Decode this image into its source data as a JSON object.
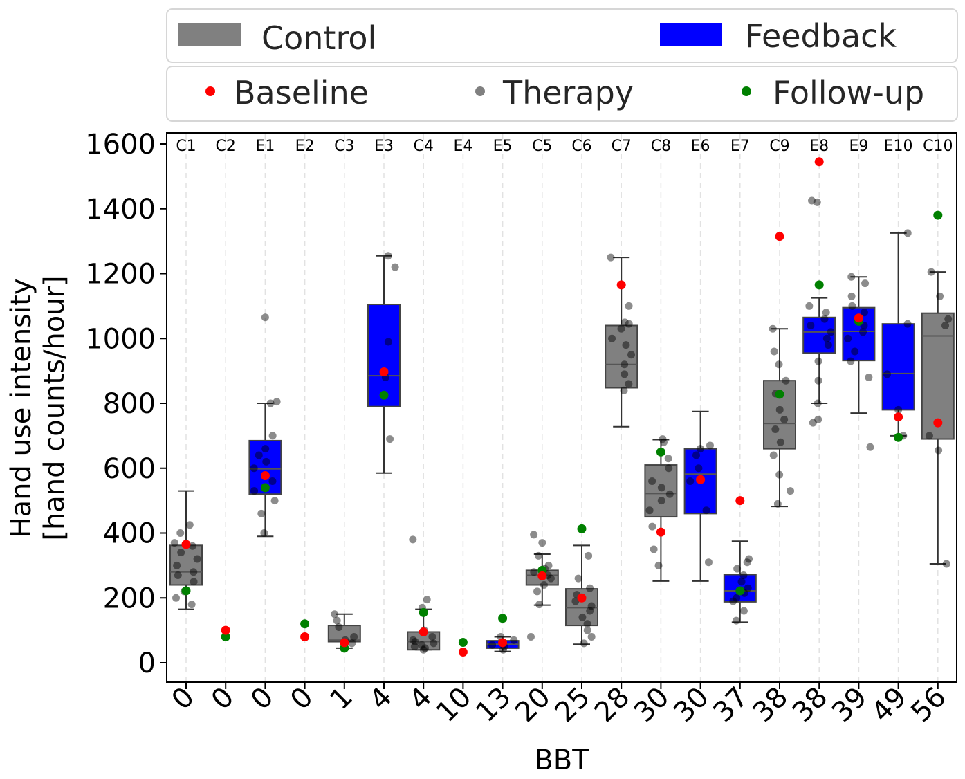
{
  "chart_data": {
    "type": "box",
    "ylabel_line1": "Hand use intensity",
    "ylabel_line2": "[hand counts/hour]",
    "xlabel": "BBT",
    "ylim": [
      -60,
      1640
    ],
    "yticks": [
      0,
      200,
      400,
      600,
      800,
      1000,
      1200,
      1400,
      1600
    ],
    "legend_groups": [
      {
        "label": "Control",
        "color": "#808080"
      },
      {
        "label": "Feedback",
        "color": "#0000ff"
      }
    ],
    "legend_markers": [
      {
        "label": "Baseline",
        "color": "#ff0000"
      },
      {
        "label": "Therapy",
        "color": "#808080"
      },
      {
        "label": "Follow-up",
        "color": "#008000"
      }
    ],
    "categories": [
      {
        "id": "C1",
        "bbt": "0",
        "group": "Control",
        "box": {
          "q1": 240,
          "median": 280,
          "q3": 362,
          "low": 165,
          "high": 530
        },
        "therapy": [
          180,
          200,
          220,
          250,
          270,
          280,
          300,
          320,
          340,
          360,
          370,
          400,
          425
        ],
        "baseline": 365,
        "followup": 222
      },
      {
        "id": "C2",
        "bbt": "0",
        "group": "Control",
        "box": null,
        "therapy": [],
        "baseline": 100,
        "followup": 80
      },
      {
        "id": "E1",
        "bbt": "0",
        "group": "Feedback",
        "box": {
          "q1": 520,
          "median": 598,
          "q3": 685,
          "low": 390,
          "high": 800
        },
        "therapy": [
          400,
          460,
          500,
          530,
          560,
          600,
          620,
          640,
          660,
          700,
          800,
          805,
          1065
        ],
        "baseline": 577,
        "followup": 540
      },
      {
        "id": "E2",
        "bbt": "0",
        "group": "Feedback",
        "box": null,
        "therapy": [],
        "baseline": 80,
        "followup": 120
      },
      {
        "id": "C3",
        "bbt": "1",
        "group": "Control",
        "box": {
          "q1": 65,
          "median": 70,
          "q3": 115,
          "low": 45,
          "high": 150
        },
        "therapy": [
          60,
          70,
          80,
          110,
          130,
          150
        ],
        "baseline": 62,
        "followup": 45
      },
      {
        "id": "E3",
        "bbt": "4",
        "group": "Feedback",
        "box": {
          "q1": 790,
          "median": 885,
          "q3": 1105,
          "low": 585,
          "high": 1255
        },
        "therapy": [
          690,
          880,
          990,
          1220,
          1255
        ],
        "baseline": 897,
        "followup": 825
      },
      {
        "id": "C4",
        "bbt": "4",
        "group": "Control",
        "box": {
          "q1": 40,
          "median": 65,
          "q3": 95,
          "low": 40,
          "high": 165
        },
        "therapy": [
          40,
          45,
          50,
          55,
          60,
          65,
          70,
          80,
          100,
          170,
          195,
          380
        ],
        "baseline": 95,
        "followup": 155
      },
      {
        "id": "E4",
        "bbt": "10",
        "group": "Feedback",
        "box": null,
        "therapy": [],
        "baseline": 33,
        "followup": 63
      },
      {
        "id": "E5",
        "bbt": "13",
        "group": "Feedback",
        "box": {
          "q1": 45,
          "median": 57,
          "q3": 68,
          "low": 35,
          "high": 80
        },
        "therapy": [
          40,
          50,
          55,
          60,
          70,
          80
        ],
        "baseline": 62,
        "followup": 137
      },
      {
        "id": "C5",
        "bbt": "20",
        "group": "Control",
        "box": {
          "q1": 240,
          "median": 270,
          "q3": 285,
          "low": 178,
          "high": 335
        },
        "therapy": [
          80,
          180,
          220,
          240,
          260,
          270,
          280,
          290,
          300,
          330,
          370,
          395
        ],
        "baseline": 268,
        "followup": 285
      },
      {
        "id": "C6",
        "bbt": "25",
        "group": "Control",
        "box": {
          "q1": 115,
          "median": 170,
          "q3": 228,
          "low": 57,
          "high": 362
        },
        "therapy": [
          60,
          80,
          100,
          120,
          140,
          160,
          175,
          190,
          210,
          230,
          260,
          330
        ],
        "baseline": 200,
        "followup": 413
      },
      {
        "id": "C7",
        "bbt": "28",
        "group": "Control",
        "box": {
          "q1": 848,
          "median": 920,
          "q3": 1040,
          "low": 728,
          "high": 1250
        },
        "therapy": [
          840,
          860,
          890,
          920,
          950,
          980,
          1000,
          1030,
          1045,
          1050,
          1100,
          1250
        ],
        "baseline": 1165,
        "followup": null
      },
      {
        "id": "C8",
        "bbt": "30",
        "group": "Control",
        "box": {
          "q1": 450,
          "median": 522,
          "q3": 610,
          "low": 252,
          "high": 688
        },
        "therapy": [
          300,
          350,
          420,
          470,
          500,
          520,
          540,
          560,
          600,
          630,
          680,
          690
        ],
        "baseline": 403,
        "followup": 650
      },
      {
        "id": "E6",
        "bbt": "30",
        "group": "Feedback",
        "box": {
          "q1": 460,
          "median": 582,
          "q3": 660,
          "low": 252,
          "high": 775
        },
        "therapy": [
          310,
          470,
          560,
          600,
          640,
          660,
          670
        ],
        "baseline": 565,
        "followup": null
      },
      {
        "id": "E7",
        "bbt": "37",
        "group": "Feedback",
        "box": {
          "q1": 188,
          "median": 222,
          "q3": 272,
          "low": 125,
          "high": 375
        },
        "therapy": [
          130,
          160,
          190,
          200,
          215,
          230,
          250,
          270,
          290,
          310,
          320
        ],
        "baseline": 500,
        "followup": 222
      },
      {
        "id": "C9",
        "bbt": "38",
        "group": "Control",
        "box": {
          "q1": 660,
          "median": 738,
          "q3": 870,
          "low": 482,
          "high": 1030
        },
        "therapy": [
          490,
          530,
          580,
          640,
          680,
          720,
          750,
          780,
          830,
          870,
          920,
          960,
          1030
        ],
        "baseline": 1315,
        "followup": 828
      },
      {
        "id": "E8",
        "bbt": "38",
        "group": "Feedback",
        "box": {
          "q1": 955,
          "median": 1020,
          "q3": 1065,
          "low": 800,
          "high": 1125
        },
        "therapy": [
          740,
          750,
          800,
          870,
          930,
          980,
          1000,
          1020,
          1040,
          1060,
          1080,
          1100,
          1420,
          1425
        ],
        "baseline": 1545,
        "followup": 1165
      },
      {
        "id": "E9",
        "bbt": "39",
        "group": "Feedback",
        "box": {
          "q1": 932,
          "median": 1022,
          "q3": 1095,
          "low": 770,
          "high": 1190
        },
        "therapy": [
          665,
          880,
          930,
          960,
          1000,
          1020,
          1040,
          1080,
          1100,
          1130,
          1170,
          1190
        ],
        "baseline": 1063,
        "followup": 1053
      },
      {
        "id": "E10",
        "bbt": "49",
        "group": "Feedback",
        "box": {
          "q1": 780,
          "median": 892,
          "q3": 1045,
          "low": 700,
          "high": 1325
        },
        "therapy": [
          700,
          780,
          890,
          1045,
          1325
        ],
        "baseline": 758,
        "followup": 695
      },
      {
        "id": "C10",
        "bbt": "56",
        "group": "Control",
        "box": {
          "q1": 690,
          "median": 1008,
          "q3": 1078,
          "low": 305,
          "high": 1205
        },
        "therapy": [
          305,
          655,
          700,
          1040,
          1060,
          1130,
          1205
        ],
        "baseline": 740,
        "followup": 1380
      }
    ]
  }
}
